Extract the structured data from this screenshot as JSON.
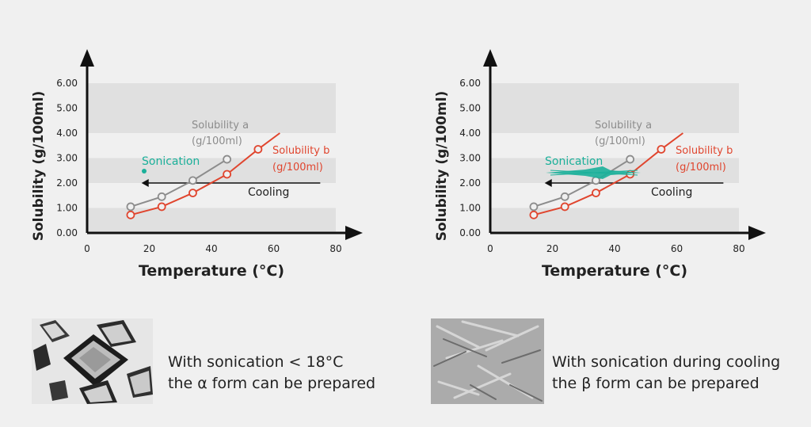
{
  "chart_data": [
    {
      "type": "line",
      "ylabel": "Solubility (g/100ml)",
      "xlabel": "Temperature (°C)",
      "xlim": [
        0,
        80
      ],
      "ylim": [
        0,
        6
      ],
      "x_ticks": [
        "0",
        "20",
        "40",
        "60",
        "80"
      ],
      "y_ticks": [
        "0.00",
        "1.00",
        "2.00",
        "3.00",
        "4.00",
        "5.00",
        "6.00"
      ],
      "series": [
        {
          "name": "Solubility a (g/100ml)",
          "color": "#8c8c8c",
          "x": [
            14,
            24,
            34,
            45
          ],
          "y": [
            1.05,
            1.45,
            2.1,
            2.95
          ]
        },
        {
          "name": "Solubility b (g/100ml)",
          "color": "#e0452e",
          "x": [
            14,
            24,
            34,
            45,
            55,
            62
          ],
          "y": [
            0.72,
            1.05,
            1.6,
            2.35,
            3.35,
            4.0
          ]
        }
      ],
      "series_labels": {
        "a_line1": "Solubility a",
        "a_line2": "(g/100ml)",
        "b_line1": "Solubility b",
        "b_line2": "(g/100ml)"
      },
      "annotations": {
        "sonication": "Sonication",
        "cooling": "Cooling"
      },
      "sonication_mode": "dot",
      "sonication_color": "#1bb09a",
      "grid": "horizontal bands"
    },
    {
      "type": "line",
      "ylabel": "Solubility (g/100ml)",
      "xlabel": "Temperature (°C)",
      "xlim": [
        0,
        80
      ],
      "ylim": [
        0,
        6
      ],
      "x_ticks": [
        "0",
        "20",
        "40",
        "60",
        "80"
      ],
      "y_ticks": [
        "0.00",
        "1.00",
        "2.00",
        "3.00",
        "4.00",
        "5.00",
        "6.00"
      ],
      "series": [
        {
          "name": "Solubility a (g/100ml)",
          "color": "#8c8c8c",
          "x": [
            14,
            24,
            34,
            45
          ],
          "y": [
            1.05,
            1.45,
            2.1,
            2.95
          ]
        },
        {
          "name": "Solubility b (g/100ml)",
          "color": "#e0452e",
          "x": [
            14,
            24,
            34,
            45,
            55,
            62
          ],
          "y": [
            0.72,
            1.05,
            1.6,
            2.35,
            3.35,
            4.0
          ]
        }
      ],
      "series_labels": {
        "a_line1": "Solubility a",
        "a_line2": "(g/100ml)",
        "b_line1": "Solubility b",
        "b_line2": "(g/100ml)"
      },
      "annotations": {
        "sonication": "Sonication",
        "cooling": "Cooling"
      },
      "sonication_mode": "burst",
      "sonication_color": "#1bb09a",
      "grid": "horizontal bands"
    }
  ],
  "captions": {
    "left_line1": "With sonication < 18°C",
    "left_line2": "the α form can be prepared",
    "right_line1": "With sonication during cooling",
    "right_line2": "the β form can be prepared"
  },
  "images": {
    "left": "alpha-crystals-micrograph",
    "right": "beta-needle-crystals-micrograph"
  }
}
